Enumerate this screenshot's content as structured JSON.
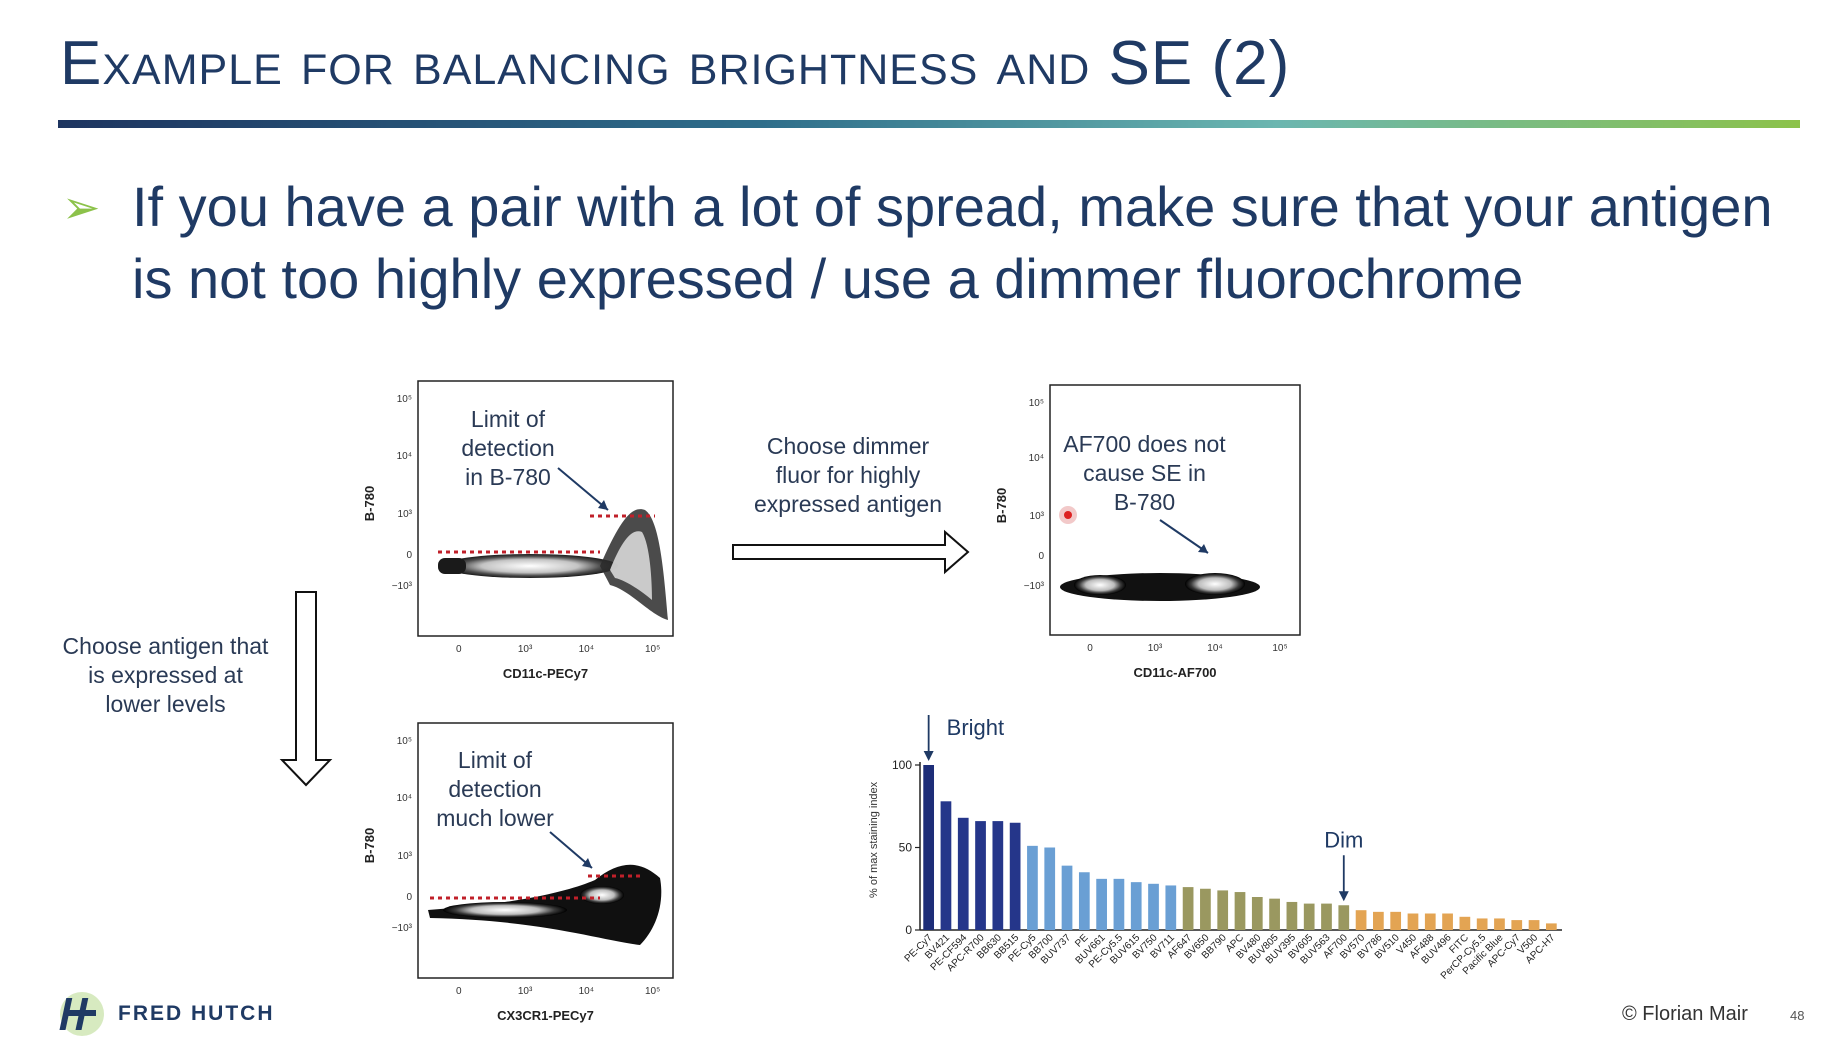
{
  "slide": {
    "title": "Example for balancing brightness and SE (2)",
    "bullet_line1": "If you have a pair with a lot of spread, make sure that your antigen",
    "bullet_line2": "is not too highly expressed / use a dimmer fluorochrome",
    "page_number": "48",
    "copyright": "© Florian Mair",
    "logo_text": "FRED HUTCH"
  },
  "plot1": {
    "ylabel": "B-780",
    "xlabel": "CD11c-PECy7",
    "annotation": [
      "Limit of",
      "detection",
      "in B-780"
    ]
  },
  "plot2": {
    "ylabel": "B-780",
    "xlabel": "CD11c-AF700",
    "annotation": [
      "AF700 does not",
      "cause SE in",
      "B-780"
    ]
  },
  "plot3": {
    "ylabel": "B-780",
    "xlabel": "CX3CR1-PECy7",
    "annotation": [
      "Limit of",
      "detection",
      "much lower"
    ]
  },
  "arrow_right_text": [
    "Choose dimmer",
    "fluor for highly",
    "expressed antigen"
  ],
  "arrow_down_text": [
    "Choose antigen that",
    "is expressed at",
    "lower levels"
  ],
  "axis_ticks": {
    "y": [
      "10⁵",
      "10⁴",
      "10³",
      "0",
      "−10³"
    ],
    "x": [
      "0",
      "10³",
      "10⁴",
      "10⁵"
    ]
  },
  "chart_data": {
    "type": "bar",
    "ylabel": "% of max staining index",
    "ylim": [
      0,
      100
    ],
    "yticks": [
      "0",
      "50",
      "100"
    ],
    "categories": [
      "PE-Cy7",
      "BV421",
      "PE-CF594",
      "APC-R700",
      "BB630",
      "BB515",
      "PE-Cy5",
      "BB700",
      "BUV737",
      "PE",
      "BUV661",
      "PE-Cy5.5",
      "BUV615",
      "BV750",
      "BV711",
      "AF647",
      "BV650",
      "BB790",
      "APC",
      "BV480",
      "BUV805",
      "BUV395",
      "BV605",
      "BUV563",
      "AF700",
      "BV570",
      "BV786",
      "BV510",
      "V450",
      "AF488",
      "BUV496",
      "FITC",
      "PerCP-Cy5.5",
      "Pacific Blue",
      "APC-Cy7",
      "V500",
      "APC-H7"
    ],
    "values": [
      100,
      78,
      68,
      66,
      66,
      65,
      51,
      50,
      39,
      35,
      31,
      31,
      29,
      28,
      27,
      26,
      25,
      24,
      23,
      20,
      19,
      17,
      16,
      16,
      15,
      12,
      11,
      11,
      10,
      10,
      10,
      8,
      7,
      7,
      6,
      6,
      4
    ],
    "colors": [
      "#1d2d78",
      "#25368a",
      "#25368a",
      "#25368a",
      "#25368a",
      "#25368a",
      "#6a9fd4",
      "#6a9fd4",
      "#6a9fd4",
      "#6a9fd4",
      "#6a9fd4",
      "#6a9fd4",
      "#6a9fd4",
      "#6a9fd4",
      "#6a9fd4",
      "#9a9860",
      "#9a9860",
      "#9a9860",
      "#9a9860",
      "#9a9860",
      "#9a9860",
      "#9a9860",
      "#9a9860",
      "#9a9860",
      "#9a9860",
      "#e3a453",
      "#e3a453",
      "#e3a453",
      "#e3a453",
      "#e3a453",
      "#e3a453",
      "#e3a453",
      "#e3a453",
      "#e3a453",
      "#e3a453",
      "#e3a453",
      "#e3a453"
    ],
    "annotations": [
      {
        "label": "Bright",
        "category": "PE-Cy7"
      },
      {
        "label": "Dim",
        "category": "AF700"
      }
    ]
  }
}
